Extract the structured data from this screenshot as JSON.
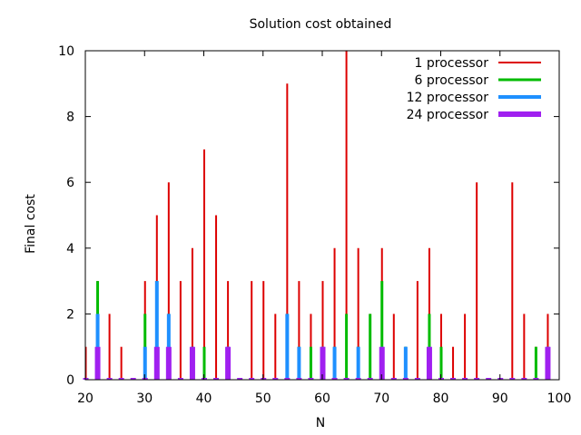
{
  "chart_data": {
    "type": "bar",
    "title": "Solution cost obtained",
    "xlabel": "N",
    "ylabel": "Final cost",
    "xlim": [
      20,
      100
    ],
    "ylim": [
      0,
      10
    ],
    "xticks": [
      20,
      30,
      40,
      50,
      60,
      70,
      80,
      90,
      100
    ],
    "yticks": [
      0,
      2,
      4,
      6,
      8,
      10
    ],
    "xtick_labels": [
      "20",
      "30",
      "40",
      "50",
      "60",
      "70",
      "80",
      "90",
      "100"
    ],
    "ytick_labels": [
      "0",
      "2",
      "4",
      "6",
      "8",
      "10"
    ],
    "grid": false,
    "legend_position": "top-right",
    "x": [
      20,
      22,
      24,
      26,
      28,
      30,
      32,
      34,
      36,
      38,
      40,
      42,
      44,
      46,
      48,
      50,
      52,
      54,
      56,
      58,
      60,
      62,
      64,
      66,
      68,
      70,
      72,
      74,
      76,
      78,
      80,
      82,
      84,
      86,
      88,
      90,
      92,
      94,
      96,
      98
    ],
    "series": [
      {
        "name": "1 processor",
        "color": "#dd0000",
        "values": [
          1,
          3,
          2,
          1,
          0,
          3,
          5,
          6,
          3,
          4,
          7,
          5,
          3,
          0,
          3,
          3,
          2,
          9,
          3,
          2,
          3,
          4,
          10,
          4,
          2,
          4,
          2,
          1,
          3,
          4,
          2,
          1,
          2,
          6,
          0,
          0,
          6,
          2,
          1,
          2
        ]
      },
      {
        "name": "6 processor",
        "color": "#00bb00",
        "values": [
          0,
          3,
          0,
          0,
          0,
          2,
          3,
          2,
          0,
          1,
          1,
          0,
          1,
          0,
          0,
          0,
          0,
          2,
          1,
          1,
          1,
          1,
          2,
          1,
          2,
          3,
          0,
          1,
          0,
          2,
          1,
          0,
          0,
          0,
          0,
          0,
          0,
          0,
          1,
          1
        ]
      },
      {
        "name": "12 processor",
        "color": "#1e90ff",
        "values": [
          0,
          2,
          0,
          0,
          0,
          1,
          3,
          2,
          0,
          1,
          0,
          0,
          1,
          0,
          0,
          0,
          0,
          2,
          1,
          0,
          1,
          1,
          0,
          1,
          0,
          1,
          0,
          1,
          0,
          1,
          0,
          0,
          0,
          0,
          0,
          0,
          0,
          0,
          0,
          1
        ]
      },
      {
        "name": "24 processor",
        "color": "#a020f0",
        "values": [
          0,
          1,
          0,
          0,
          0,
          0,
          1,
          1,
          0,
          1,
          0,
          0,
          1,
          0,
          0,
          0,
          0,
          0,
          0,
          0,
          1,
          0,
          0,
          0,
          0,
          1,
          0,
          0,
          0,
          1,
          0,
          0,
          0,
          0,
          0,
          0,
          0,
          0,
          0,
          1
        ]
      }
    ]
  }
}
